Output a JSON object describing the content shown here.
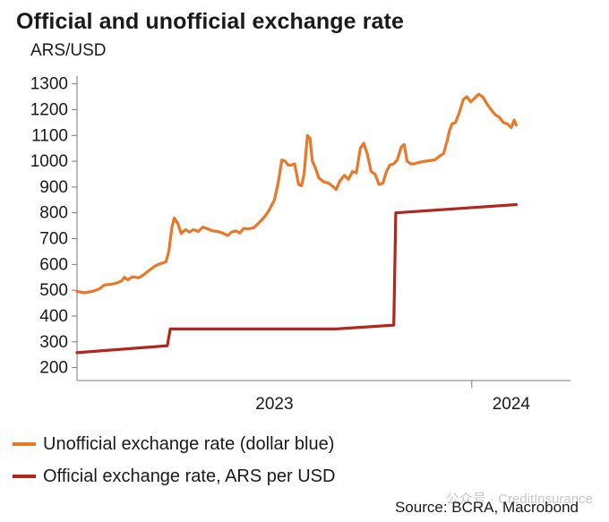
{
  "title": "Official and unofficial exchange rate",
  "unit_label": "ARS/USD",
  "source": "Source: BCRA, Macrobond",
  "watermark": "公众号 · CreditInsurance",
  "chart_data": {
    "type": "line",
    "ylim": [
      150,
      1330
    ],
    "yticks": [
      200,
      300,
      400,
      500,
      600,
      700,
      800,
      900,
      1000,
      1100,
      1200,
      1300
    ],
    "xlim": [
      0,
      100
    ],
    "xticks": [
      {
        "label": "2023",
        "x": 40
      },
      {
        "label": "2024",
        "x": 88
      }
    ],
    "year_boundaries": [
      80
    ],
    "grid": false,
    "legend_position": "bottom",
    "series": [
      {
        "name": "Unofficial exchange rate (dollar blue)",
        "color": "#e8782a",
        "points": [
          [
            0.0,
            495
          ],
          [
            1.5,
            490
          ],
          [
            3.0,
            495
          ],
          [
            4.5,
            505
          ],
          [
            5.5,
            520
          ],
          [
            7.5,
            525
          ],
          [
            9.0,
            535
          ],
          [
            9.6,
            550
          ],
          [
            10.3,
            540
          ],
          [
            11.2,
            552
          ],
          [
            12.5,
            548
          ],
          [
            13.5,
            560
          ],
          [
            14.5,
            575
          ],
          [
            15.5,
            590
          ],
          [
            16.5,
            600
          ],
          [
            18.0,
            610
          ],
          [
            18.6,
            650
          ],
          [
            19.2,
            740
          ],
          [
            19.7,
            780
          ],
          [
            20.4,
            760
          ],
          [
            21.1,
            720
          ],
          [
            22.0,
            735
          ],
          [
            22.8,
            725
          ],
          [
            23.6,
            735
          ],
          [
            24.6,
            728
          ],
          [
            25.5,
            745
          ],
          [
            26.5,
            738
          ],
          [
            27.5,
            730
          ],
          [
            28.5,
            728
          ],
          [
            29.5,
            722
          ],
          [
            30.5,
            712
          ],
          [
            31.3,
            725
          ],
          [
            32.2,
            730
          ],
          [
            33.0,
            722
          ],
          [
            33.8,
            740
          ],
          [
            34.8,
            738
          ],
          [
            35.8,
            742
          ],
          [
            36.8,
            760
          ],
          [
            37.8,
            780
          ],
          [
            38.6,
            800
          ],
          [
            39.2,
            820
          ],
          [
            40.0,
            850
          ],
          [
            40.8,
            920
          ],
          [
            41.5,
            1005
          ],
          [
            42.2,
            1000
          ],
          [
            42.8,
            985
          ],
          [
            43.4,
            985
          ],
          [
            44.1,
            990
          ],
          [
            44.9,
            910
          ],
          [
            45.5,
            905
          ],
          [
            46.0,
            950
          ],
          [
            46.7,
            1100
          ],
          [
            47.2,
            1090
          ],
          [
            47.7,
            1000
          ],
          [
            48.3,
            975
          ],
          [
            49.0,
            935
          ],
          [
            50.0,
            920
          ],
          [
            51.0,
            915
          ],
          [
            52.0,
            900
          ],
          [
            52.5,
            890
          ],
          [
            53.3,
            925
          ],
          [
            54.2,
            945
          ],
          [
            55.0,
            930
          ],
          [
            55.8,
            960
          ],
          [
            56.6,
            955
          ],
          [
            57.4,
            1050
          ],
          [
            58.1,
            1070
          ],
          [
            58.8,
            1030
          ],
          [
            59.6,
            960
          ],
          [
            60.4,
            950
          ],
          [
            61.2,
            910
          ],
          [
            62.0,
            915
          ],
          [
            62.7,
            960
          ],
          [
            63.4,
            985
          ],
          [
            64.2,
            990
          ],
          [
            64.9,
            1005
          ],
          [
            65.7,
            1055
          ],
          [
            66.3,
            1065
          ],
          [
            66.9,
            1000
          ],
          [
            67.6,
            990
          ],
          [
            68.4,
            990
          ],
          [
            69.2,
            995
          ],
          [
            70.0,
            998
          ],
          [
            71.2,
            1002
          ],
          [
            72.5,
            1005
          ],
          [
            73.5,
            1020
          ],
          [
            74.3,
            1030
          ],
          [
            75.0,
            1080
          ],
          [
            75.5,
            1120
          ],
          [
            76.0,
            1145
          ],
          [
            76.7,
            1150
          ],
          [
            77.5,
            1190
          ],
          [
            78.3,
            1240
          ],
          [
            79.0,
            1250
          ],
          [
            79.8,
            1230
          ],
          [
            80.6,
            1245
          ],
          [
            81.4,
            1260
          ],
          [
            82.2,
            1250
          ],
          [
            83.0,
            1225
          ],
          [
            83.9,
            1200
          ],
          [
            84.8,
            1180
          ],
          [
            85.6,
            1170
          ],
          [
            86.4,
            1150
          ],
          [
            87.2,
            1145
          ],
          [
            88.0,
            1130
          ],
          [
            88.6,
            1160
          ],
          [
            89.0,
            1140
          ]
        ]
      },
      {
        "name": "Official exchange rate, ARS per USD",
        "color": "#b0271e",
        "points": [
          [
            0.0,
            258
          ],
          [
            18.3,
            285
          ],
          [
            18.9,
            350
          ],
          [
            52.5,
            350
          ],
          [
            64.2,
            365
          ],
          [
            64.6,
            800
          ],
          [
            89.0,
            832
          ]
        ]
      }
    ]
  }
}
